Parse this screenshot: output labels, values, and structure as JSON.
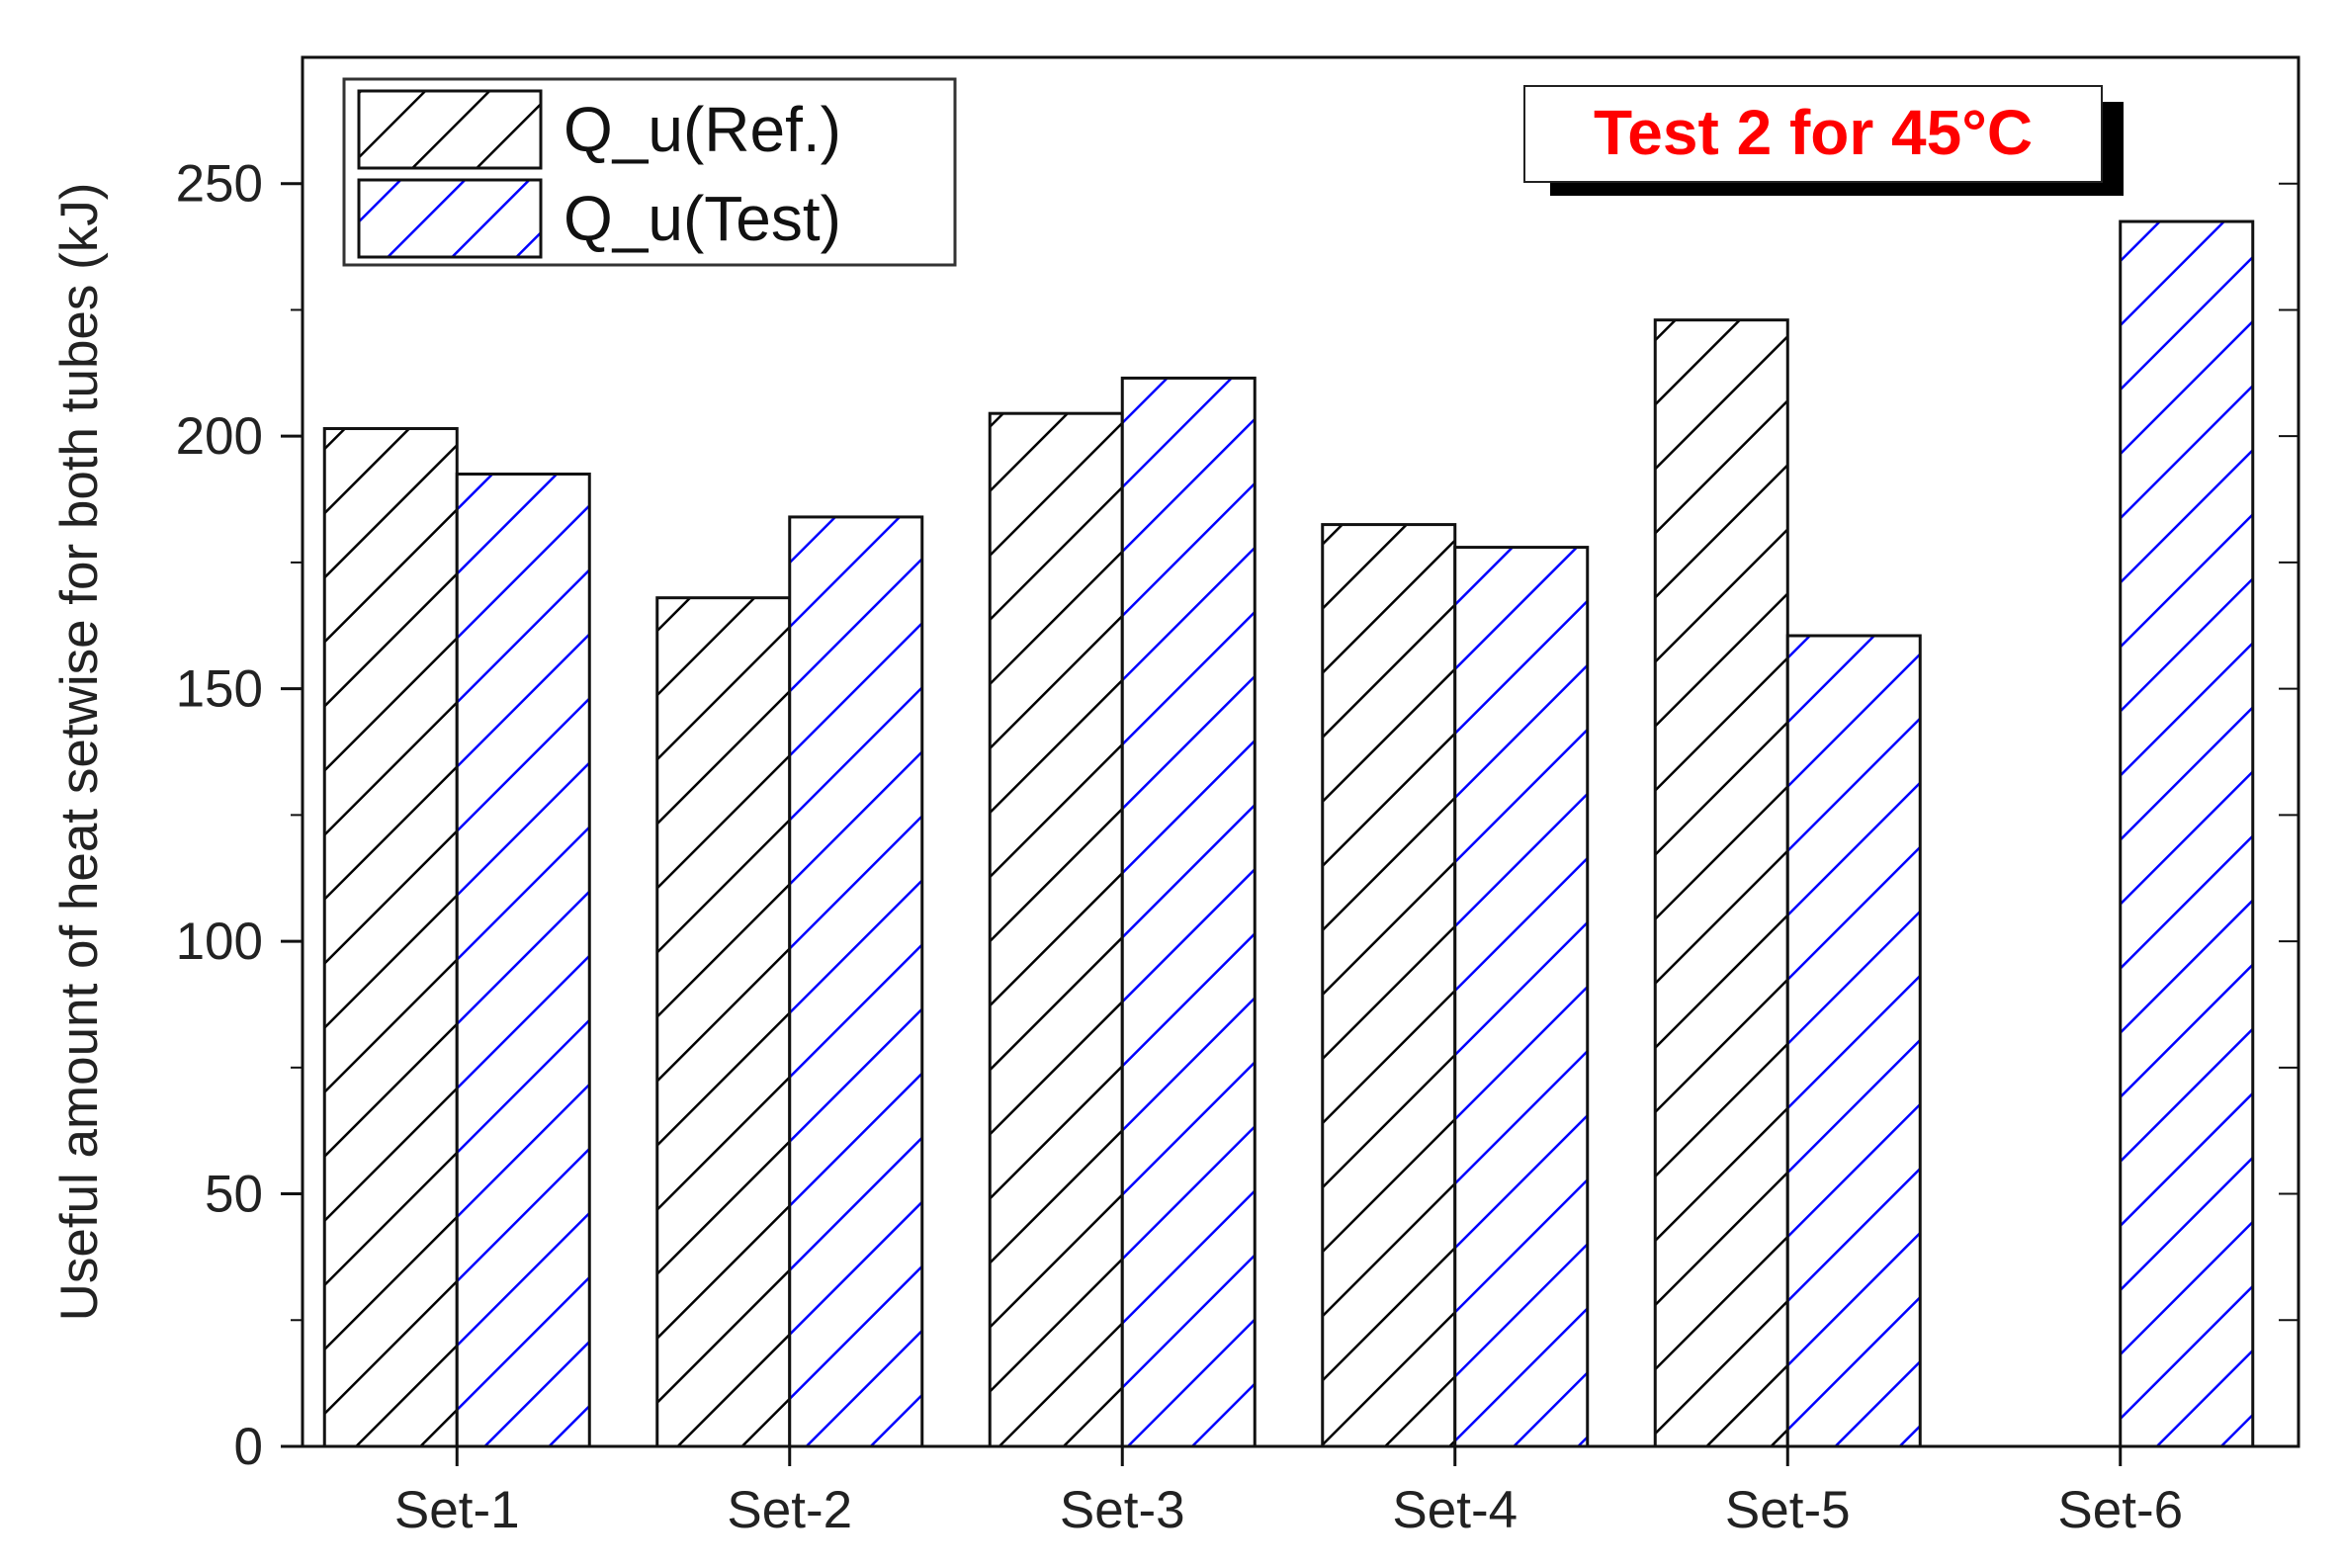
{
  "chart_data": {
    "type": "bar",
    "categories": [
      "Set-1",
      "Set-2",
      "Set-3",
      "Set-4",
      "Set-5",
      "Set-6"
    ],
    "series": [
      {
        "name": "Q_u(Ref.)",
        "values": [
          201.5,
          168,
          204.5,
          182.5,
          223,
          null
        ],
        "color": "#000000",
        "pattern": "hatch-diagonal"
      },
      {
        "name": "Q_u(Test)",
        "values": [
          192.5,
          184,
          211.5,
          178,
          160.5,
          242.5
        ],
        "color": "#0000ff",
        "pattern": "hatch-diagonal"
      }
    ],
    "title": "",
    "xlabel": "",
    "ylabel": "Useful amount of heat setwise for both tubes (kJ)",
    "ylim": [
      0,
      275
    ],
    "yticks": [
      0,
      50,
      100,
      150,
      200,
      250
    ],
    "grid": false,
    "legend_position": "top-left",
    "annotation": {
      "text": "Test 2 for 45°C",
      "color": "#ff0000",
      "position": "top-right"
    }
  }
}
